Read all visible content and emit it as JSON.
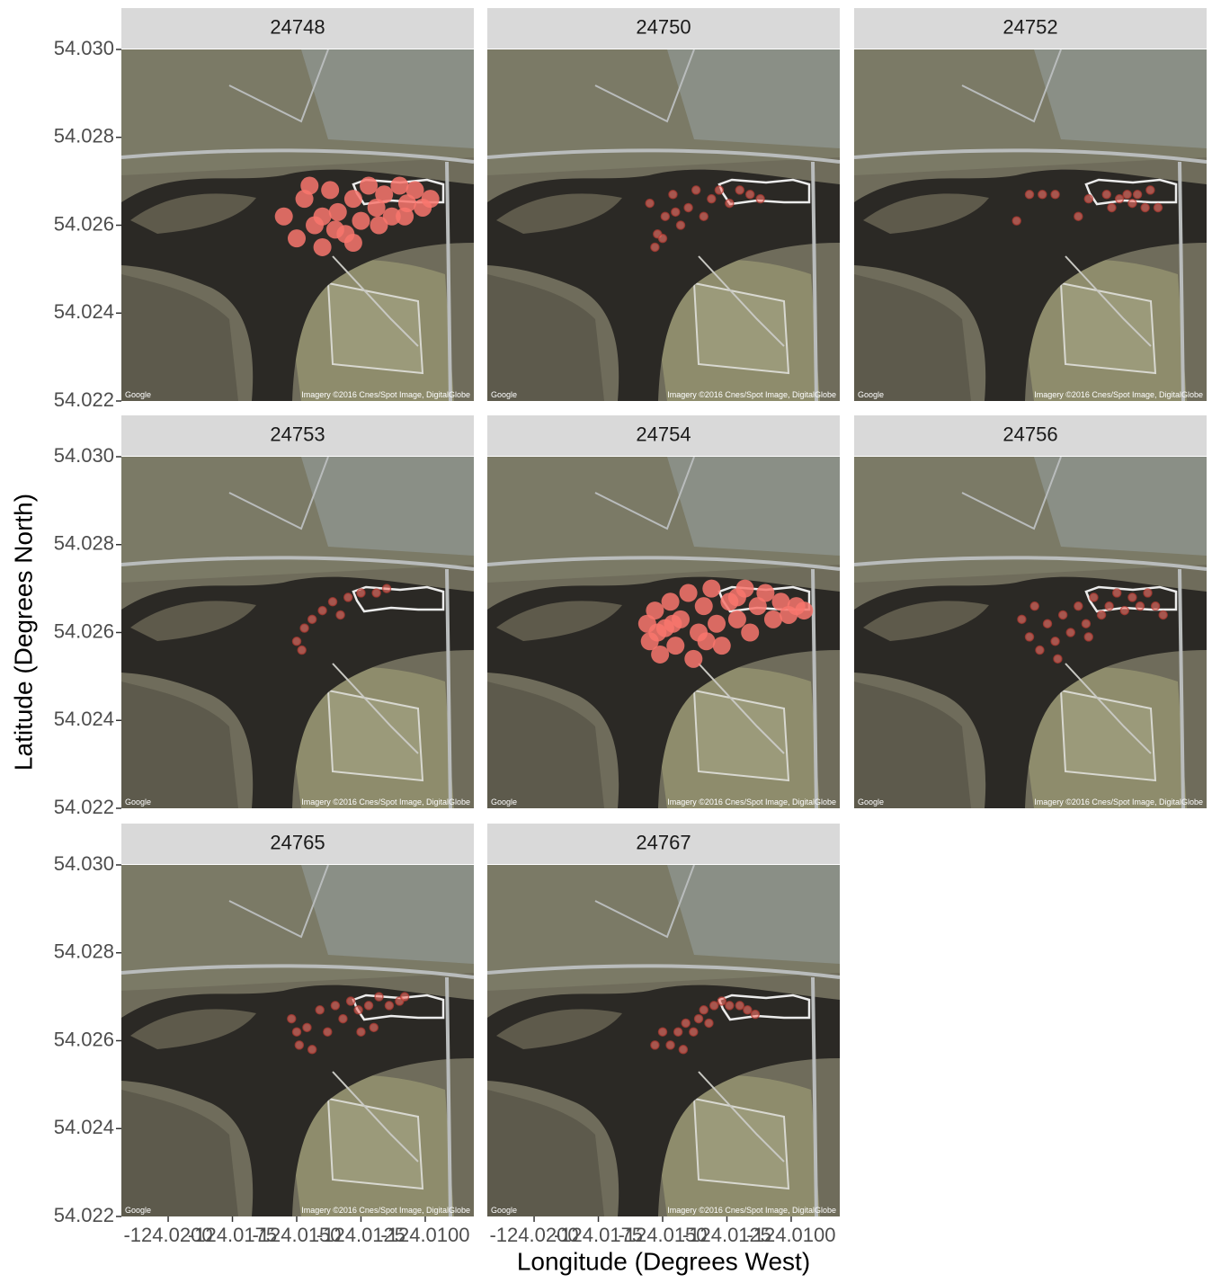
{
  "chart_data": {
    "type": "scatter",
    "x_label": "Longitude (Degrees West)",
    "y_label": "Latitude (Degrees North)",
    "attribution": "Google",
    "imagery_credit": "Imagery ©2016 Cnes/Spot Image, DigitalGlobe",
    "color": "#f8766d",
    "xlim": [
      -124.02182,
      -124.00811
    ],
    "ylim": [
      54.022,
      54.03
    ],
    "xticks": [
      {
        "value": -124.02,
        "label": "-124.0200"
      },
      {
        "value": -124.0175,
        "label": "-124.0175"
      },
      {
        "value": -124.015,
        "label": "-124.0150"
      },
      {
        "value": -124.0125,
        "label": "-124.0125"
      },
      {
        "value": -124.01,
        "label": "-124.0100"
      }
    ],
    "yticks": [
      54.022,
      54.024,
      54.026,
      54.028,
      {
        "value": 54.03,
        "label": "54.030"
      }
    ],
    "panels": [
      {
        "title": "24748",
        "x": [
          -124.0155,
          -124.015,
          -124.0147,
          -124.0143,
          -124.014,
          -124.0137,
          -124.0134,
          -124.0131,
          -124.0128,
          -124.0125,
          -124.0122,
          -124.0119,
          -124.0116,
          -124.0113,
          -124.011,
          -124.0107,
          -124.0104,
          -124.0101,
          -124.0098,
          -124.0135,
          -124.0128,
          -124.0118,
          -124.014,
          -124.0108,
          -124.0145
        ],
        "y": [
          54.0262,
          54.0257,
          54.0266,
          54.026,
          54.0255,
          54.0268,
          54.0263,
          54.0258,
          54.0266,
          54.0261,
          54.0269,
          54.0264,
          54.0267,
          54.0262,
          54.0269,
          54.0265,
          54.0268,
          54.0264,
          54.0266,
          54.0259,
          54.0256,
          54.026,
          54.0262,
          54.0262,
          54.0269
        ]
      },
      {
        "title": "24750",
        "x": [
          -124.0155,
          -124.0152,
          -124.0149,
          -124.0153,
          -124.0146,
          -124.0143,
          -124.014,
          -124.0137,
          -124.0134,
          -124.0131,
          -124.0128,
          -124.0124,
          -124.012,
          -124.0116,
          -124.0112,
          -124.015,
          -124.0145
        ],
        "y": [
          54.0265,
          54.0258,
          54.0262,
          54.0255,
          54.0267,
          54.026,
          54.0264,
          54.0268,
          54.0262,
          54.0266,
          54.0268,
          54.0265,
          54.0268,
          54.0267,
          54.0266,
          54.0257,
          54.0263
        ]
      },
      {
        "title": "24752",
        "x": [
          -124.015,
          -124.0145,
          -124.014,
          -124.0155,
          -124.0131,
          -124.012,
          -124.0115,
          -124.0112,
          -124.011,
          -124.0108,
          -124.0105,
          -124.0103,
          -124.01,
          -124.0118,
          -124.0127
        ],
        "y": [
          54.0267,
          54.0267,
          54.0267,
          54.0261,
          54.0262,
          54.0267,
          54.0266,
          54.0267,
          54.0265,
          54.0267,
          54.0264,
          54.0268,
          54.0264,
          54.0264,
          54.0266
        ]
      },
      {
        "title": "24753",
        "x": [
          -124.015,
          -124.0147,
          -124.0144,
          -124.014,
          -124.0136,
          -124.013,
          -124.0125,
          -124.0119,
          -124.0115,
          -124.0133,
          -124.0148
        ],
        "y": [
          54.0258,
          54.0261,
          54.0263,
          54.0265,
          54.0267,
          54.0268,
          54.0269,
          54.0269,
          54.027,
          54.0264,
          54.0256
        ]
      },
      {
        "title": "24754",
        "x": [
          -124.0156,
          -124.0155,
          -124.0153,
          -124.0151,
          -124.0149,
          -124.0147,
          -124.0145,
          -124.0143,
          -124.014,
          -124.0138,
          -124.0136,
          -124.0134,
          -124.0131,
          -124.0129,
          -124.0127,
          -124.0124,
          -124.0121,
          -124.0118,
          -124.0116,
          -124.0113,
          -124.011,
          -124.0107,
          -124.0104,
          -124.0101,
          -124.0098,
          -124.0095,
          -124.0146,
          -124.0133,
          -124.0121,
          -124.0152
        ],
        "y": [
          54.0262,
          54.0258,
          54.0265,
          54.0255,
          54.0261,
          54.0267,
          54.0257,
          54.0263,
          54.0269,
          54.0254,
          54.026,
          54.0266,
          54.027,
          54.0262,
          54.0257,
          54.0267,
          54.0263,
          54.027,
          54.026,
          54.0266,
          54.0269,
          54.0263,
          54.0267,
          54.0264,
          54.0266,
          54.0265,
          54.0262,
          54.0258,
          54.0268,
          54.026
        ]
      },
      {
        "title": "24756",
        "x": [
          -124.0153,
          -124.015,
          -124.0148,
          -124.0146,
          -124.0143,
          -124.014,
          -124.0137,
          -124.0134,
          -124.0131,
          -124.0128,
          -124.0125,
          -124.0122,
          -124.0119,
          -124.0116,
          -124.0113,
          -124.011,
          -124.0107,
          -124.0104,
          -124.0101,
          -124.0098,
          -124.0139,
          -124.0127
        ],
        "y": [
          54.0263,
          54.0259,
          54.0266,
          54.0256,
          54.0262,
          54.0258,
          54.0264,
          54.026,
          54.0266,
          54.0262,
          54.0268,
          54.0264,
          54.0266,
          54.0269,
          54.0265,
          54.0268,
          54.0266,
          54.0269,
          54.0266,
          54.0264,
          54.0254,
          54.0259
        ]
      },
      {
        "title": "24765",
        "x": [
          -124.0152,
          -124.0149,
          -124.0146,
          -124.0144,
          -124.0141,
          -124.0138,
          -124.0135,
          -124.0132,
          -124.0129,
          -124.0126,
          -124.0122,
          -124.0118,
          -124.0114,
          -124.011,
          -124.0125,
          -124.012,
          -124.015,
          -124.0108
        ],
        "y": [
          54.0265,
          54.0259,
          54.0263,
          54.0258,
          54.0267,
          54.0262,
          54.0268,
          54.0265,
          54.0269,
          54.0267,
          54.0268,
          54.027,
          54.0268,
          54.0269,
          54.0262,
          54.0263,
          54.0262,
          54.027
        ]
      },
      {
        "title": "24767",
        "x": [
          -124.015,
          -124.0147,
          -124.0144,
          -124.0141,
          -124.0138,
          -124.0136,
          -124.0134,
          -124.0132,
          -124.013,
          -124.0127,
          -124.0124,
          -124.012,
          -124.0117,
          -124.0114,
          -124.0142,
          -124.0153
        ],
        "y": [
          54.0262,
          54.0259,
          54.0262,
          54.0264,
          54.0262,
          54.0265,
          54.0267,
          54.0264,
          54.0268,
          54.0269,
          54.0268,
          54.0268,
          54.0267,
          54.0266,
          54.0258,
          54.0259
        ]
      }
    ]
  }
}
